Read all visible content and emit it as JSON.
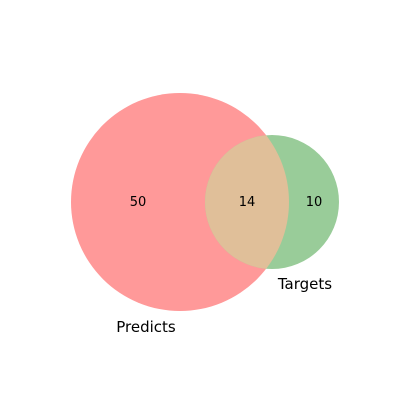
{
  "venn": {
    "sets": [
      {
        "label": "Predicts",
        "only_count": "50",
        "color": "#ff9999",
        "opacity": 0.4
      },
      {
        "label": "Targets",
        "only_count": "10",
        "color": "#99cc99",
        "opacity": 0.4
      }
    ],
    "intersection": {
      "count": "14",
      "color": "#e0bf99"
    }
  }
}
